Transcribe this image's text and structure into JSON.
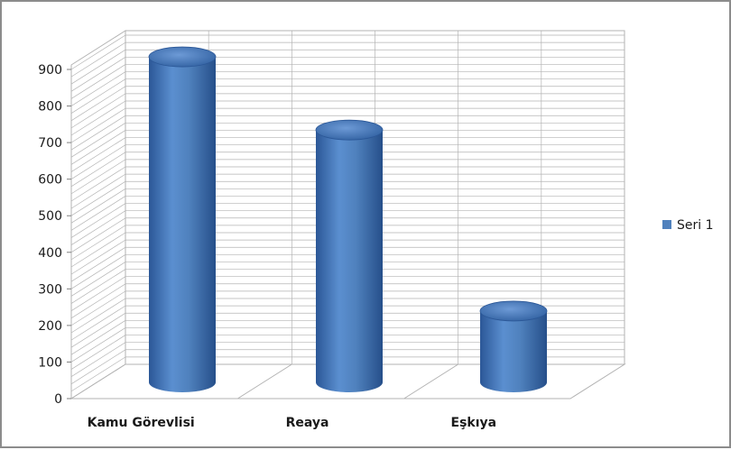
{
  "chart_data": {
    "type": "bar",
    "style": "3d-cylinder",
    "categories": [
      "Kamu Görevlisi",
      "Reaya",
      "Eşkıya"
    ],
    "series": [
      {
        "name": "Seri 1",
        "values": [
          890,
          690,
          195
        ],
        "color": "#4f81bd"
      }
    ],
    "title": "",
    "xlabel": "",
    "ylabel": "",
    "ylim": [
      0,
      900
    ],
    "yticks": [
      0,
      100,
      200,
      300,
      400,
      500,
      600,
      700,
      800,
      900
    ],
    "grid": true,
    "legend_position": "right"
  },
  "colors": {
    "bar_light": "#7ea6dc",
    "bar_main": "#4f81bd",
    "bar_dark": "#2b5797",
    "grid": "#b3b3b3",
    "frame": "#8c8c8c"
  }
}
